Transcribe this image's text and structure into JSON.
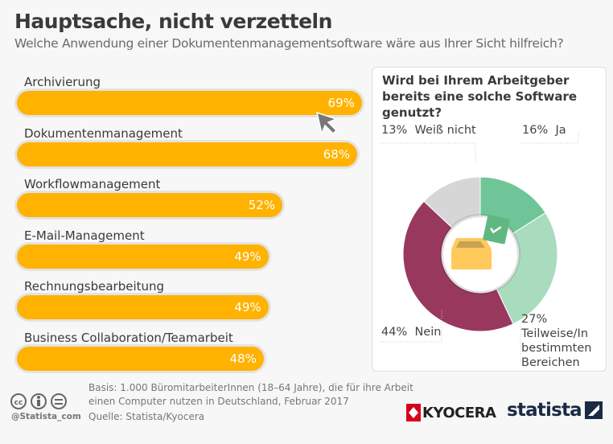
{
  "header": {
    "title": "Hauptsache, nicht verzetteln",
    "subtitle": "Welche Anwendung einer Dokumentenmanagementsoftware wäre aus Ihrer Sicht hilfreich?"
  },
  "chart_data": [
    {
      "type": "bar",
      "orientation": "horizontal",
      "categories": [
        "Archivierung",
        "Dokumentenmanagement",
        "Workflowmanagement",
        "E-Mail-Management",
        "Rechnungsbearbeitung",
        "Business Collaboration/Teamarbeit"
      ],
      "values": [
        69,
        68,
        52,
        49,
        49,
        48
      ],
      "value_labels": [
        "69%",
        "68%",
        "52%",
        "49%",
        "49%",
        "48%"
      ],
      "unit": "%",
      "color": "#ffb200"
    },
    {
      "type": "pie",
      "style": "donut",
      "title": "Wird bei Ihrem Arbeitgeber bereits eine solche Software genutzt?",
      "slices": [
        {
          "label": "Ja",
          "value": 16,
          "value_label": "16%",
          "color": "#6fc597"
        },
        {
          "label": "Teilweise/In bestimmten Bereichen",
          "value": 27,
          "value_label": "27%",
          "color": "#a9dcbf"
        },
        {
          "label": "Nein",
          "value": 44,
          "value_label": "44%",
          "color": "#98385c"
        },
        {
          "label": "Weiß nicht",
          "value": 13,
          "value_label": "13%",
          "color": "#d6d6d6"
        }
      ]
    }
  ],
  "footer": {
    "basis": "Basis: 1.000 BüromitarbeiterInnen (18–64 Jahre), die für ihre Arbeit",
    "basis2": "einen Computer nutzen in Deutschland, Februar 2017",
    "source": "Quelle: Statista/Kyocera",
    "handle": "@Statista_com",
    "logo1": "KYOCERA",
    "logo2": "statista"
  }
}
